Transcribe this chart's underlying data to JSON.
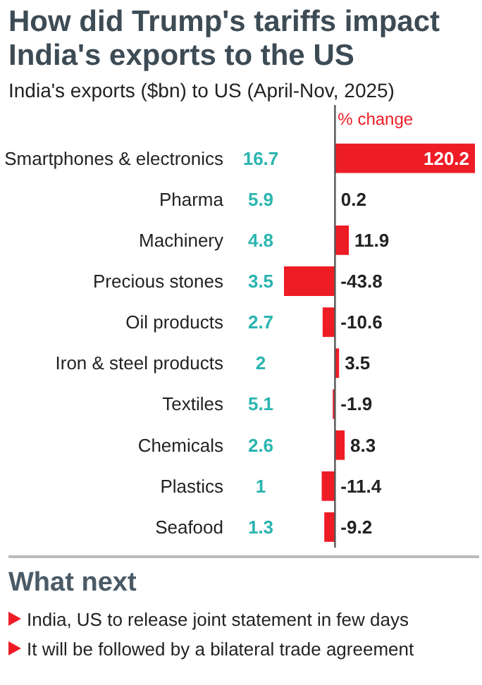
{
  "chart_data": {
    "type": "bar",
    "orientation": "horizontal",
    "title": "How did Trump's tariffs impact India's exports to the US",
    "subtitle": "India's exports ($bn) to US (April-Nov, 2025)",
    "categories": [
      "Smartphones & electronics",
      "Pharma",
      "Machinery",
      "Precious stones",
      "Oil products",
      "Iron & steel products",
      "Textiles",
      "Chemicals",
      "Plastics",
      "Seafood"
    ],
    "series": [
      {
        "name": "% change",
        "color": "#ee1c25",
        "values": [
          120.2,
          0.2,
          11.9,
          -43.8,
          -10.6,
          3.5,
          -1.9,
          8.3,
          -11.4,
          -9.2
        ]
      }
    ],
    "xlim": [
      -45,
      122
    ],
    "data_labels": true,
    "tick_labels": "y",
    "grid": false,
    "annotations": [
      "16.7",
      "5.9",
      "4.8",
      "3.5",
      "2.7",
      "2",
      "5.1",
      "2.6",
      "1",
      "1.3",
      "What next",
      "India, US to release joint statement in few days",
      "It will be followed by a bilateral trade agreement"
    ]
  }
}
